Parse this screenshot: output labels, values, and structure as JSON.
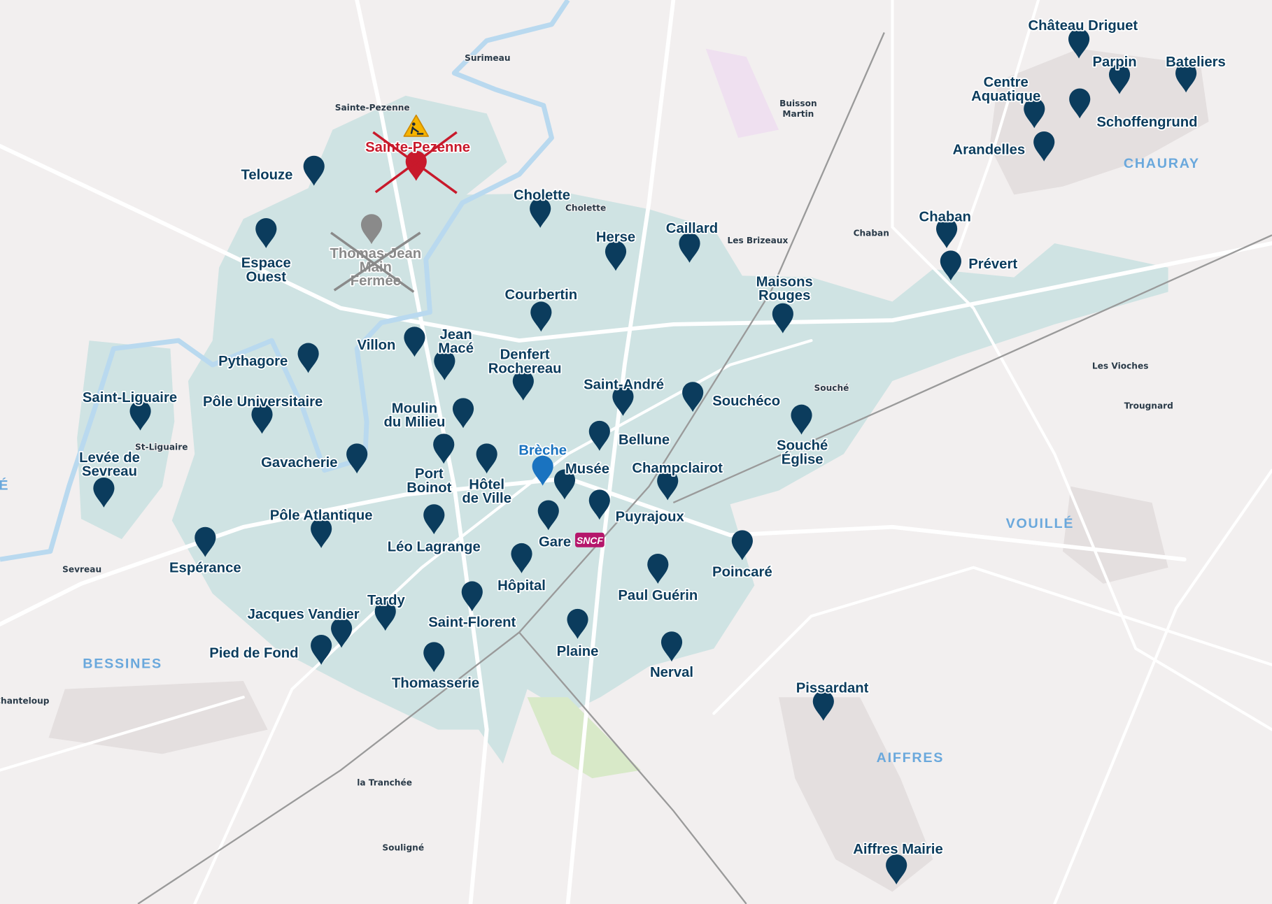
{
  "map": {
    "colors": {
      "station_pin": "#0b3c5d",
      "highlight_pin": "#1a73c0",
      "closed_red": "#c8192b",
      "closed_gray": "#8a8a8a",
      "urban_area": "#cfe3e3",
      "background": "#f2efef",
      "river": "#b9d9ef",
      "commune_label": "#6aa8dc"
    },
    "stations": [
      {
        "lines": [
          "Château Driguet"
        ]
      },
      {
        "lines": [
          "Parpin"
        ]
      },
      {
        "lines": [
          "Bateliers"
        ]
      },
      {
        "lines": [
          "Centre",
          "Aquatique"
        ]
      },
      {
        "lines": [
          "Schoffengrund"
        ]
      },
      {
        "lines": [
          "Arandelles"
        ]
      },
      {
        "lines": [
          "Chaban"
        ]
      },
      {
        "lines": [
          "Prévert"
        ]
      },
      {
        "lines": [
          "Telouze"
        ]
      },
      {
        "lines": [
          "Espace",
          "Ouest"
        ]
      },
      {
        "lines": [
          "Cholette"
        ]
      },
      {
        "lines": [
          "Herse"
        ]
      },
      {
        "lines": [
          "Caillard"
        ]
      },
      {
        "lines": [
          "Maisons",
          "Rouges"
        ]
      },
      {
        "lines": [
          "Courbertin"
        ]
      },
      {
        "lines": [
          "Villon"
        ]
      },
      {
        "lines": [
          "Jean",
          "Macé"
        ]
      },
      {
        "lines": [
          "Pythagore"
        ]
      },
      {
        "lines": [
          "Denfert",
          "Rochereau"
        ]
      },
      {
        "lines": [
          "Saint-Liguaire"
        ]
      },
      {
        "lines": [
          "Pôle Universitaire"
        ]
      },
      {
        "lines": [
          "Moulin",
          "du Milieu"
        ]
      },
      {
        "lines": [
          "Saint-André"
        ]
      },
      {
        "lines": [
          "Souchéco"
        ]
      },
      {
        "lines": [
          "Bellune"
        ]
      },
      {
        "lines": [
          "Souché",
          "Église"
        ]
      },
      {
        "lines": [
          "Gavacherie"
        ]
      },
      {
        "lines": [
          "Port",
          "Boinot"
        ]
      },
      {
        "lines": [
          "Hôtel",
          "de Ville"
        ]
      },
      {
        "lines": [
          "Brèche"
        ],
        "highlight": true
      },
      {
        "lines": [
          "Musée"
        ]
      },
      {
        "lines": [
          "Champclairot"
        ]
      },
      {
        "lines": [
          "Levée de",
          "Sevreau"
        ]
      },
      {
        "lines": [
          "Puyrajoux"
        ]
      },
      {
        "lines": [
          "Pôle Atlantique"
        ]
      },
      {
        "lines": [
          "Léo Lagrange"
        ]
      },
      {
        "lines": [
          "Gare"
        ]
      },
      {
        "lines": [
          "Espérance"
        ]
      },
      {
        "lines": [
          "Poincaré"
        ]
      },
      {
        "lines": [
          "Hôpital"
        ]
      },
      {
        "lines": [
          "Paul Guérin"
        ]
      },
      {
        "lines": [
          "Tardy"
        ]
      },
      {
        "lines": [
          "Jacques Vandier"
        ]
      },
      {
        "lines": [
          "Saint-Florent"
        ]
      },
      {
        "lines": [
          "Pied de Fond"
        ]
      },
      {
        "lines": [
          "Plaine"
        ]
      },
      {
        "lines": [
          "Nerval"
        ]
      },
      {
        "lines": [
          "Thomasserie"
        ]
      },
      {
        "lines": [
          "Pissardant"
        ]
      },
      {
        "lines": [
          "Aiffres Mairie"
        ]
      }
    ],
    "closed_stations": [
      {
        "lines": [
          "Sainte-Pezenne"
        ],
        "status": "closed",
        "color": "red",
        "icon": "roadwork-warning-icon"
      },
      {
        "lines": [
          "Thomas-Jean",
          "Main",
          "Fermée"
        ],
        "status": "closed",
        "color": "gray"
      }
    ],
    "sncf_logo": "SNCF",
    "communes": [
      "CHAURAY",
      "VOUILLÉ",
      "BESSINES",
      "AIFFRES",
      "É"
    ],
    "places": [
      {
        "lines": [
          "Surimeau"
        ]
      },
      {
        "lines": [
          "Sainte-Pezenne"
        ]
      },
      {
        "lines": [
          "Buisson",
          "Martin"
        ]
      },
      {
        "lines": [
          "Cholette"
        ]
      },
      {
        "lines": [
          "Les Brizeaux"
        ]
      },
      {
        "lines": [
          "Chaban"
        ]
      },
      {
        "lines": [
          "Les Vioches"
        ]
      },
      {
        "lines": [
          "Trougnard"
        ]
      },
      {
        "lines": [
          "Souché"
        ]
      },
      {
        "lines": [
          "St-Liguaire"
        ]
      },
      {
        "lines": [
          "Sevreau"
        ]
      },
      {
        "lines": [
          "Chanteloup"
        ]
      },
      {
        "lines": [
          "la Tranchée"
        ]
      },
      {
        "lines": [
          "Souligné"
        ]
      }
    ]
  }
}
